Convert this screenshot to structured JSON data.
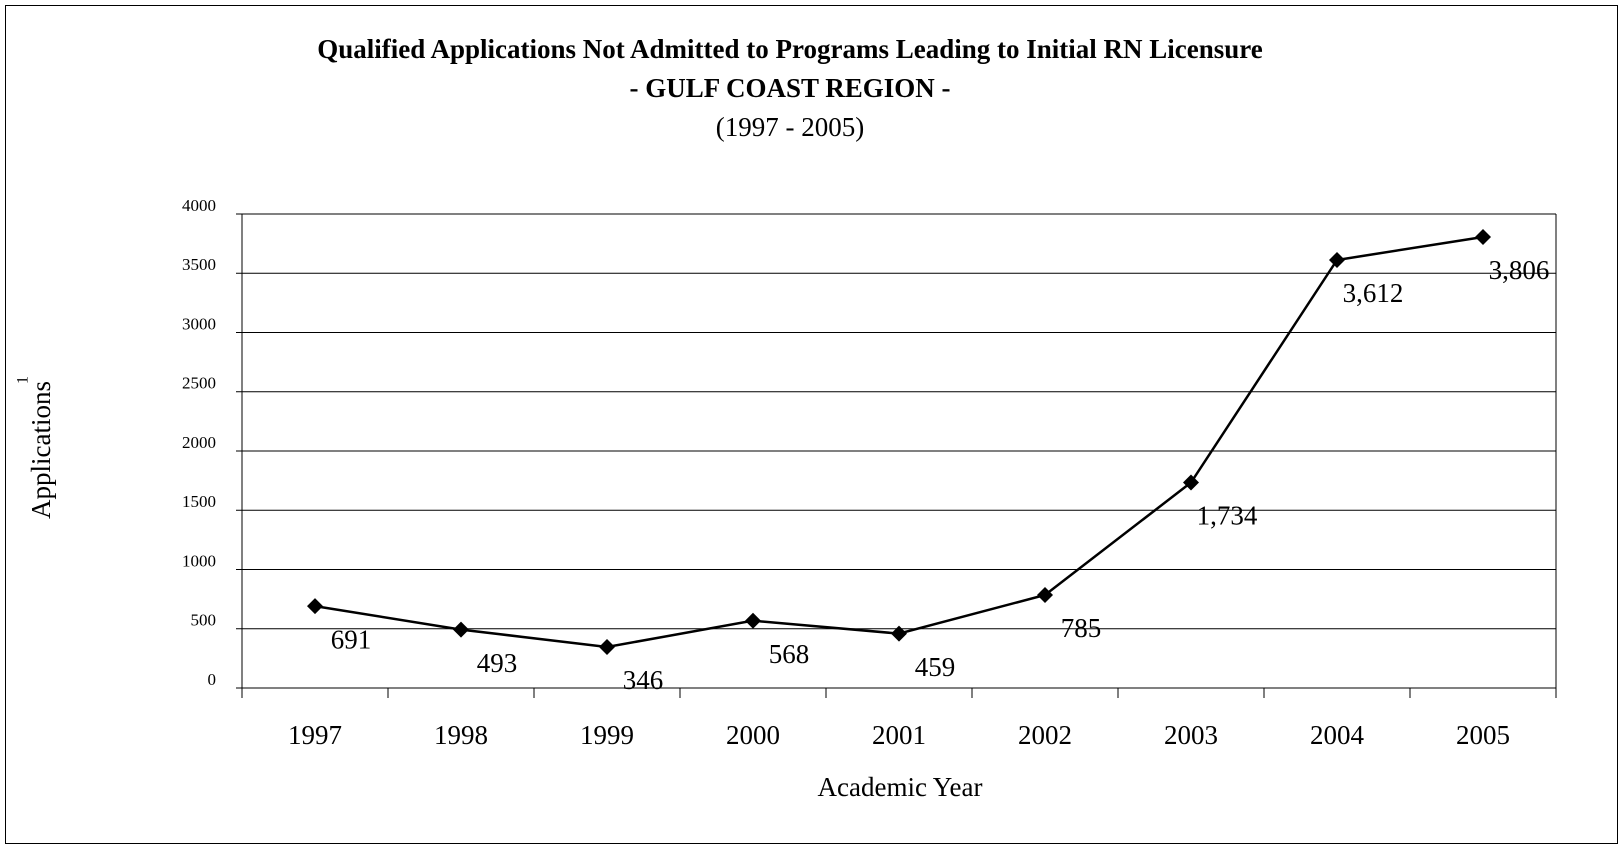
{
  "chart_data": {
    "type": "line",
    "title": "Qualified Applications Not Admitted to Programs Leading to Initial RN Licensure",
    "subtitle": "- GULF COAST REGION -",
    "period": "(1997 - 2005)",
    "x_label": "Academic Year",
    "y_label": "Applications",
    "y_label_note": "1",
    "categories": [
      "1997",
      "1998",
      "1999",
      "2000",
      "2001",
      "2002",
      "2003",
      "2004",
      "2005"
    ],
    "series": [
      {
        "color": "#000000",
        "values": [
          691,
          493,
          346,
          568,
          459,
          785,
          1734,
          3612,
          3806
        ],
        "value_labels": [
          "691",
          "493",
          "346",
          "568",
          "459",
          "785",
          "1,734",
          "3,612",
          "3,806"
        ]
      }
    ],
    "ylim": [
      0,
      4000
    ],
    "yticks": [
      0,
      500,
      1000,
      1500,
      2000,
      2500,
      3000,
      3500,
      4000
    ],
    "grid": true
  }
}
